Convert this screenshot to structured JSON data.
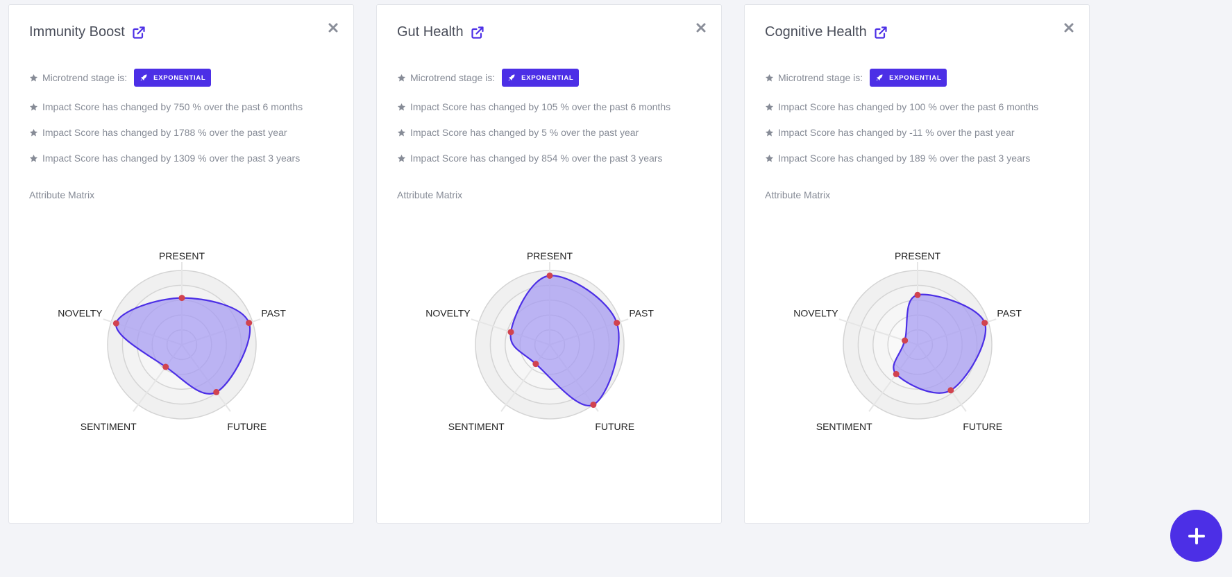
{
  "colors": {
    "accent": "#4c2fe6",
    "radar_fill": "#a79cf2",
    "radar_stroke": "#4c2fe6",
    "point": "#d1434f",
    "ring": "#d4d4d4"
  },
  "cards": [
    {
      "title": "Immunity Boost",
      "stage_label": "Microtrend stage is:",
      "stage_badge": "EXPONENTIAL",
      "stats": [
        "Impact Score has changed by 750 % over the past 6 months",
        "Impact Score has changed by 1788 % over the past year",
        "Impact Score has changed by 1309 % over the past 3 years"
      ],
      "matrix_label": "Attribute Matrix",
      "chart_data": {
        "type": "radar",
        "axes": [
          "PRESENT",
          "PAST",
          "FUTURE",
          "SENTIMENT",
          "NOVELTY"
        ],
        "values": [
          0.63,
          0.95,
          0.79,
          0.37,
          0.93
        ],
        "ring_count": 5,
        "max": 1
      }
    },
    {
      "title": "Gut Health",
      "stage_label": "Microtrend stage is:",
      "stage_badge": "EXPONENTIAL",
      "stats": [
        "Impact Score has changed by 105 % over the past 6 months",
        "Impact Score has changed by 5 % over the past year",
        "Impact Score has changed by 854 % over the past 3 years"
      ],
      "matrix_label": "Attribute Matrix",
      "chart_data": {
        "type": "radar",
        "axes": [
          "PRESENT",
          "PAST",
          "FUTURE",
          "SENTIMENT",
          "NOVELTY"
        ],
        "values": [
          0.93,
          0.95,
          1.0,
          0.32,
          0.55
        ],
        "ring_count": 5,
        "max": 1
      }
    },
    {
      "title": "Cognitive Health",
      "stage_label": "Microtrend stage is:",
      "stage_badge": "EXPONENTIAL",
      "stats": [
        "Impact Score has changed by 100 % over the past 6 months",
        "Impact Score has changed by -11 % over the past year",
        "Impact Score has changed by 189 % over the past 3 years"
      ],
      "matrix_label": "Attribute Matrix",
      "chart_data": {
        "type": "radar",
        "axes": [
          "PRESENT",
          "PAST",
          "FUTURE",
          "SENTIMENT",
          "NOVELTY"
        ],
        "values": [
          0.67,
          0.95,
          0.76,
          0.49,
          0.18
        ],
        "ring_count": 5,
        "max": 1
      }
    }
  ],
  "fab": {
    "icon": "plus-icon"
  }
}
